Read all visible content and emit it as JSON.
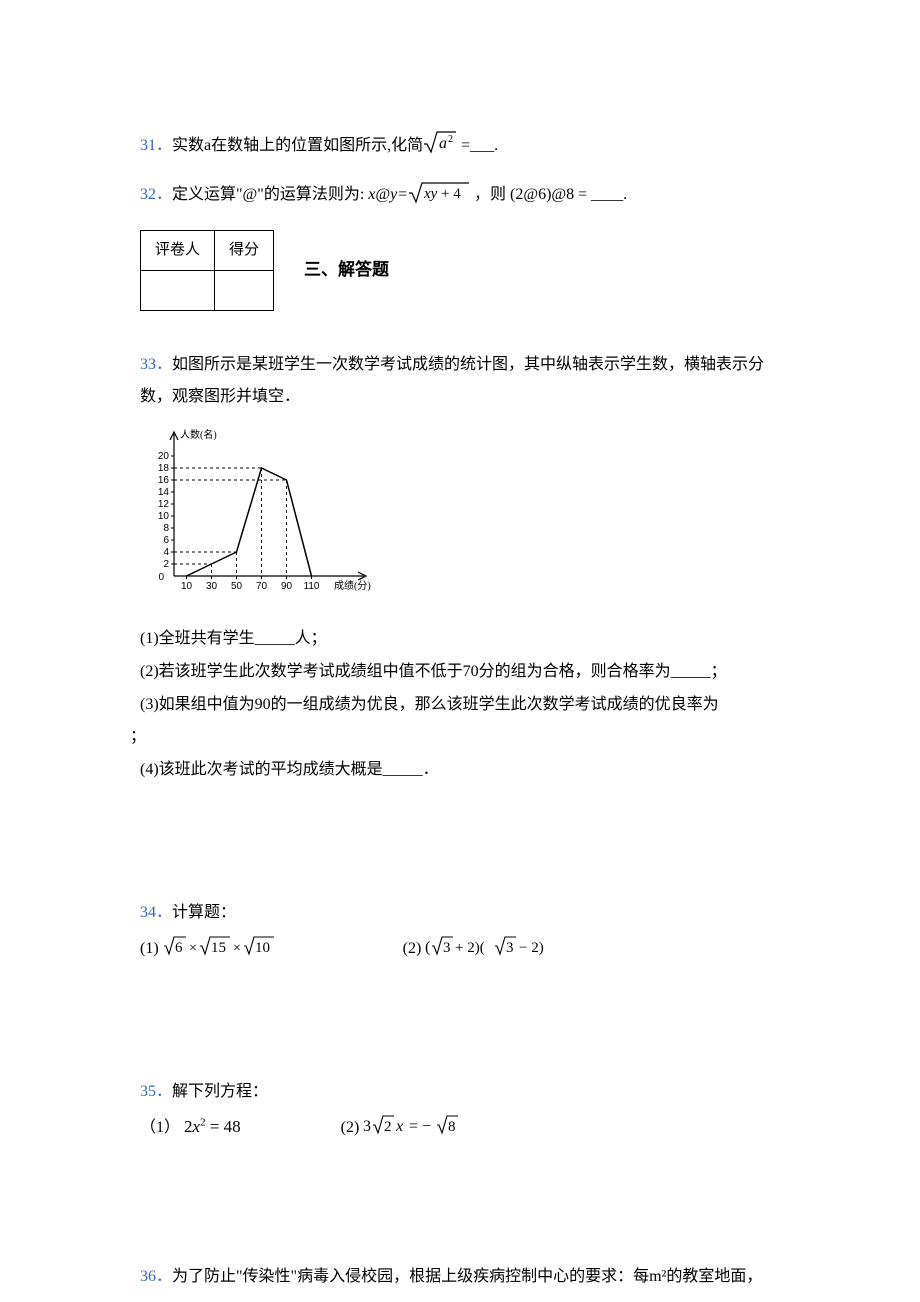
{
  "q31": {
    "num": "31．",
    "text_before": "实数a在数轴上的位置如图所示,化简",
    "formula": "√(a²)",
    "text_after": " =___."
  },
  "q32": {
    "num": "32．",
    "text_before": "定义运算\"@\"的运算法则为: ",
    "formula_left": "x@y=",
    "formula_sqrt": "√(xy+4)",
    "text_mid": " ，则 ",
    "formula_right": "(2@6)@8 = ____."
  },
  "score_table": {
    "header1": "评卷人",
    "header2": "得分"
  },
  "section3": {
    "title": "三、解答题"
  },
  "q33": {
    "num": "33．",
    "intro_line1": "如图所示是某班学生一次数学考试成绩的统计图，其中纵轴表示学生数，横轴表示分",
    "intro_line2": "数，观察图形并填空．",
    "chart": {
      "y_label": "人数(名)",
      "x_label": "成绩(分)",
      "y_ticks": [
        0,
        2,
        4,
        6,
        8,
        10,
        12,
        14,
        16,
        18,
        20
      ],
      "x_ticks": [
        10,
        30,
        50,
        70,
        90,
        110
      ],
      "data_points": [
        {
          "x": 10,
          "y": 0
        },
        {
          "x": 30,
          "y": 2
        },
        {
          "x": 50,
          "y": 4
        },
        {
          "x": 70,
          "y": 18
        },
        {
          "x": 90,
          "y": 16
        },
        {
          "x": 110,
          "y": 0
        }
      ],
      "axis_color": "#000000",
      "line_color": "#000000",
      "dash_color": "#000000",
      "font_size": 10
    },
    "sub1": "(1)全班共有学生_____人；",
    "sub2": "(2)若该班学生此次数学考试成绩组中值不低于70分的组为合格，则合格率为_____；",
    "sub3_line1": "(3)如果组中值为90的一组成绩为优良，那么该班学生此次数学考试成绩的优良率为",
    "sub3_line2": "；",
    "sub4": "(4)该班此次考试的平均成绩大概是_____．"
  },
  "q34": {
    "num": "34．",
    "title": "计算题：",
    "part1_label": "(1)",
    "part1_formula": "√6 × √15 × √10",
    "part2_label": "(2)",
    "part2_formula": "(√3 + 2)(√3 − 2)"
  },
  "q35": {
    "num": "35．",
    "title": "解下列方程：",
    "part1_label": "（1）",
    "part1_formula": "2x² = 48",
    "part2_label": "(2)",
    "part2_formula": "3√2 x = −√8"
  },
  "q36": {
    "num": "36．",
    "text": "为了防止\"传染性\"病毒入侵校园，根据上级疾病控制中心的要求：每m²的教室地面，"
  }
}
